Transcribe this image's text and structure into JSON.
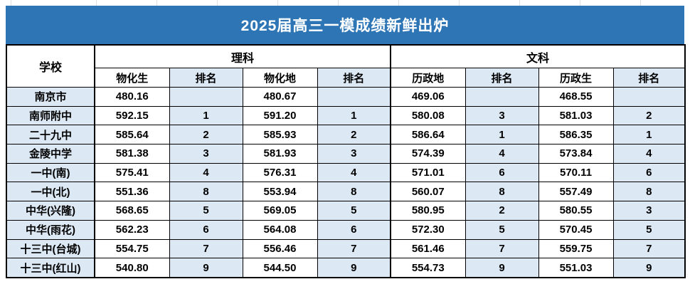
{
  "title": "2025届高三一模成绩新鲜出炉",
  "table": {
    "school_header": "学校",
    "groups": [
      {
        "label": "理科",
        "columns": [
          "物化生",
          "排名",
          "物化地",
          "排名"
        ]
      },
      {
        "label": "文科",
        "columns": [
          "历政地",
          "排名",
          "历政生",
          "排名"
        ]
      }
    ],
    "rows": [
      {
        "school": "南京市",
        "values": [
          "480.16",
          "",
          "480.67",
          "",
          "469.06",
          "",
          "468.55",
          ""
        ]
      },
      {
        "school": "南师附中",
        "values": [
          "592.15",
          "1",
          "591.20",
          "1",
          "580.08",
          "3",
          "581.03",
          "2"
        ]
      },
      {
        "school": "二十九中",
        "values": [
          "585.64",
          "2",
          "585.93",
          "2",
          "586.64",
          "1",
          "586.35",
          "1"
        ]
      },
      {
        "school": "金陵中学",
        "values": [
          "581.38",
          "3",
          "581.93",
          "3",
          "574.39",
          "4",
          "573.84",
          "4"
        ]
      },
      {
        "school": "一中(南)",
        "values": [
          "575.41",
          "4",
          "576.31",
          "4",
          "571.01",
          "6",
          "570.11",
          "6"
        ]
      },
      {
        "school": "一中(北)",
        "values": [
          "551.36",
          "8",
          "553.94",
          "8",
          "560.07",
          "8",
          "557.49",
          "8"
        ]
      },
      {
        "school": "中华(兴隆)",
        "values": [
          "568.65",
          "5",
          "569.05",
          "5",
          "580.95",
          "2",
          "580.55",
          "3"
        ]
      },
      {
        "school": "中华(雨花)",
        "values": [
          "562.23",
          "6",
          "564.08",
          "6",
          "572.30",
          "5",
          "570.45",
          "5"
        ]
      },
      {
        "school": "十三中(台城)",
        "values": [
          "554.75",
          "7",
          "556.46",
          "7",
          "561.46",
          "7",
          "559.75",
          "7"
        ]
      },
      {
        "school": "十三中(红山)",
        "values": [
          "540.80",
          "9",
          "544.50",
          "9",
          "554.73",
          "9",
          "551.03",
          "9"
        ]
      }
    ]
  },
  "colors": {
    "banner_blue": "#2E75B6",
    "cell_light_blue": "#DCE9F5",
    "border_black": "#000000"
  }
}
